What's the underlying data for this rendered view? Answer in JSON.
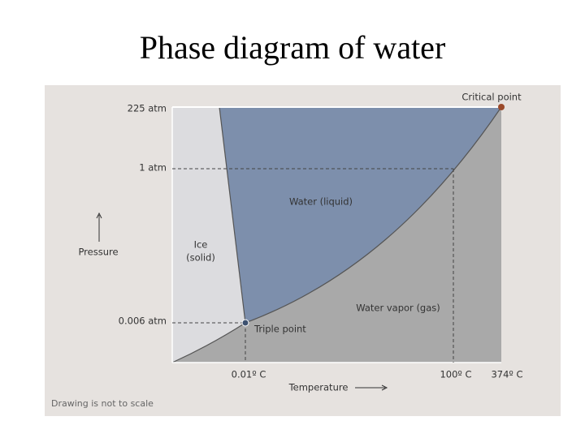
{
  "title": "Phase diagram of water",
  "diagram": {
    "pressure_labels": [
      "225 atm",
      "1 atm",
      "0.006 atm"
    ],
    "temperature_labels": [
      "0.01º C",
      "100º C",
      "374º C"
    ],
    "y_axis_label": "Pressure",
    "x_axis_label": "Temperature",
    "regions": {
      "liquid": "Water (liquid)",
      "solid": [
        "Ice",
        "(solid)"
      ],
      "gas": "Water vapor (gas)"
    },
    "points": {
      "critical": "Critical point",
      "triple": "Triple point"
    },
    "note": "Drawing is not to scale"
  }
}
